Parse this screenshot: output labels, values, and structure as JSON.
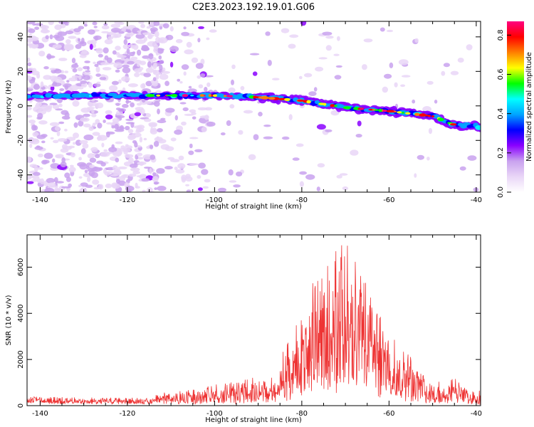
{
  "title": "C2E3.2023.192.19.01.G06",
  "chart_data": [
    {
      "type": "heatmap",
      "xlabel": "Height of straight line (km)",
      "ylabel": "Frequency (Hz)",
      "xlim": [
        -143,
        -39
      ],
      "ylim": [
        -50,
        49
      ],
      "xticks": [
        -140,
        -120,
        -100,
        -80,
        -60,
        -40
      ],
      "yticks": [
        -40,
        -20,
        0,
        20,
        40
      ],
      "grid": false,
      "colorbar": {
        "label": "Normalized spectral amplitude",
        "range": [
          0,
          0.87
        ],
        "ticks": [
          0.0,
          0.2,
          0.4,
          0.6,
          0.8
        ],
        "colormap": [
          "#ffffff",
          "#e9d6f7",
          "#c9a2ef",
          "#8a00ff",
          "#0000ff",
          "#00a5ff",
          "#00ffff",
          "#00ff00",
          "#ffff00",
          "#ff7f00",
          "#ff0000",
          "#ff0080"
        ]
      },
      "ridge": {
        "x": [
          -143,
          -130,
          -110,
          -100,
          -90,
          -80,
          -70,
          -60,
          -50,
          -45,
          -39
        ],
        "frequency": [
          6,
          6,
          6,
          6,
          5,
          3,
          -1,
          -3,
          -6,
          -11,
          -12
        ]
      }
    },
    {
      "type": "line",
      "xlabel": "Height of straight line (km)",
      "ylabel": "SNR (10 * v/v)",
      "xlim": [
        -143,
        -39
      ],
      "ylim": [
        0,
        7400
      ],
      "xticks": [
        -140,
        -120,
        -100,
        -80,
        -60,
        -40
      ],
      "yticks": [
        0,
        2000,
        4000,
        6000
      ],
      "grid": false,
      "series_color": "#ee3333",
      "envelope": {
        "x": [
          -143,
          -130,
          -115,
          -112,
          -105,
          -100,
          -95,
          -90,
          -87,
          -85,
          -82,
          -80,
          -77,
          -74,
          -72,
          -70,
          -68,
          -66,
          -63,
          -60,
          -57,
          -55,
          -52,
          -50,
          -47,
          -45,
          -42,
          -40,
          -39
        ],
        "y": [
          400,
          350,
          350,
          600,
          700,
          900,
          1100,
          1300,
          1200,
          2000,
          3500,
          4500,
          5600,
          6200,
          7000,
          7300,
          6500,
          6300,
          4500,
          3300,
          2600,
          2200,
          1500,
          1000,
          1100,
          1200,
          900,
          700,
          650
        ]
      }
    }
  ]
}
